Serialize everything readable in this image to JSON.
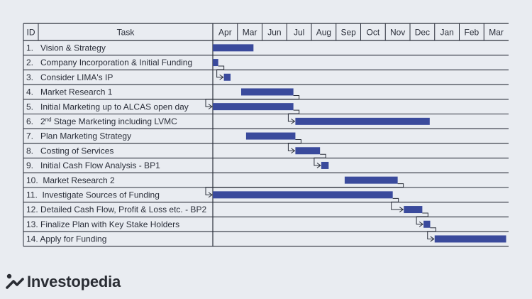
{
  "chart_data": {
    "type": "gantt",
    "columns": {
      "id": "ID",
      "task": "Task"
    },
    "months": [
      "Apr",
      "Mar",
      "Jun",
      "Jul",
      "Aug",
      "Sep",
      "Oct",
      "Nov",
      "Dec",
      "Jan",
      "Feb",
      "Mar"
    ],
    "tasks": [
      {
        "label": "1.   Vision & Strategy",
        "start": 0.0,
        "end": 1.65
      },
      {
        "label": "2.   Company Incorporation & Initial Funding",
        "start": 0.0,
        "end": 0.22
      },
      {
        "label": "3.   Consider LIMA's IP",
        "start": 0.45,
        "end": 0.72
      },
      {
        "label": "4.   Market Research 1",
        "start": 1.15,
        "end": 3.27
      },
      {
        "label": "5.   Initial Marketing up to ALCAS open day",
        "start": 0.0,
        "end": 3.27
      },
      {
        "label_prefix": "6.   2",
        "label_sup": "nd",
        "label_suffix": " Stage Marketing including LVMC",
        "start": 3.35,
        "end": 8.8
      },
      {
        "label": "7.   Plan Marketing Strategy",
        "start": 1.35,
        "end": 3.35
      },
      {
        "label": "8.   Costing of Services",
        "start": 3.35,
        "end": 4.35
      },
      {
        "label": "9.   Initial Cash Flow Analysis - BP1",
        "start": 4.4,
        "end": 4.7
      },
      {
        "label": "10.  Market Research 2",
        "start": 5.35,
        "end": 7.5
      },
      {
        "label": "11.  Investigate Sources of Funding",
        "start": 0.0,
        "end": 7.3
      },
      {
        "label": "12. Detailed Cash Flow, Profit & Loss etc. - BP2",
        "start": 7.75,
        "end": 8.5
      },
      {
        "label": "13. Finalize Plan with Key Stake Holders",
        "start": 8.55,
        "end": 8.82
      },
      {
        "label": "14. Apply for Funding",
        "start": 9.0,
        "end": 11.9
      }
    ],
    "dependencies": [
      [
        1,
        2
      ],
      [
        3,
        4
      ],
      [
        4,
        5
      ],
      [
        6,
        7
      ],
      [
        7,
        8
      ],
      [
        9,
        10
      ],
      [
        10,
        11
      ],
      [
        11,
        12
      ],
      [
        12,
        13
      ]
    ],
    "bar_color": "#3a4a9c",
    "line_color": "#2b2f3a",
    "background": "#e9ecf1"
  },
  "brand": {
    "name": "Investopedia"
  }
}
